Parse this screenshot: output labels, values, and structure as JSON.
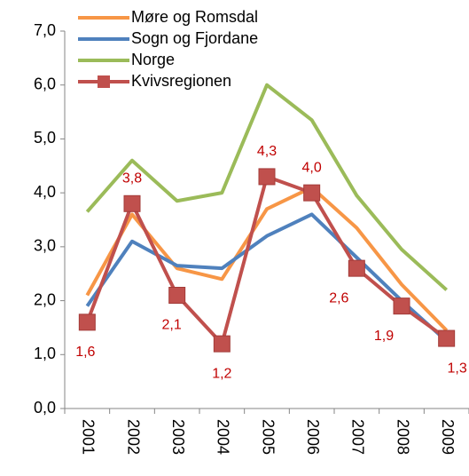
{
  "chart_data": {
    "type": "line",
    "categories": [
      "2001",
      "2002",
      "2003",
      "2004",
      "2005",
      "2006",
      "2007",
      "2008",
      "2009"
    ],
    "series": [
      {
        "name": "Møre og Romsdal",
        "color": "#f79646",
        "values": [
          2.1,
          3.6,
          2.6,
          2.4,
          3.7,
          4.1,
          3.35,
          2.3,
          1.45
        ]
      },
      {
        "name": "Sogn og Fjordane",
        "color": "#4f81bd",
        "values": [
          1.9,
          3.1,
          2.65,
          2.6,
          3.2,
          3.6,
          2.8,
          2.0,
          1.25
        ]
      },
      {
        "name": "Norge",
        "color": "#9bbb59",
        "values": [
          3.65,
          4.6,
          3.85,
          4.0,
          6.0,
          5.35,
          3.95,
          2.95,
          2.2
        ]
      },
      {
        "name": "Kvivsregionen",
        "color": "#c0504d",
        "marker": "square",
        "values": [
          1.6,
          3.8,
          2.1,
          1.2,
          4.3,
          4.0,
          2.6,
          1.9,
          1.3
        ],
        "value_labels": [
          "1,6",
          "3,8",
          "2,1",
          "1,2",
          "4,3",
          "4,0",
          "2,6",
          "1,9",
          "1,3"
        ]
      }
    ],
    "ylim": [
      0,
      7
    ],
    "yticks": [
      {
        "value": 0,
        "label": "0,0"
      },
      {
        "value": 1,
        "label": "1,0"
      },
      {
        "value": 2,
        "label": "2,0"
      },
      {
        "value": 3,
        "label": "3,0"
      },
      {
        "value": 4,
        "label": "4,0"
      },
      {
        "value": 5,
        "label": "5,0"
      },
      {
        "value": 6,
        "label": "6,0"
      },
      {
        "value": 7,
        "label": "7,0"
      }
    ],
    "legend": "upper-left",
    "grid": false
  }
}
